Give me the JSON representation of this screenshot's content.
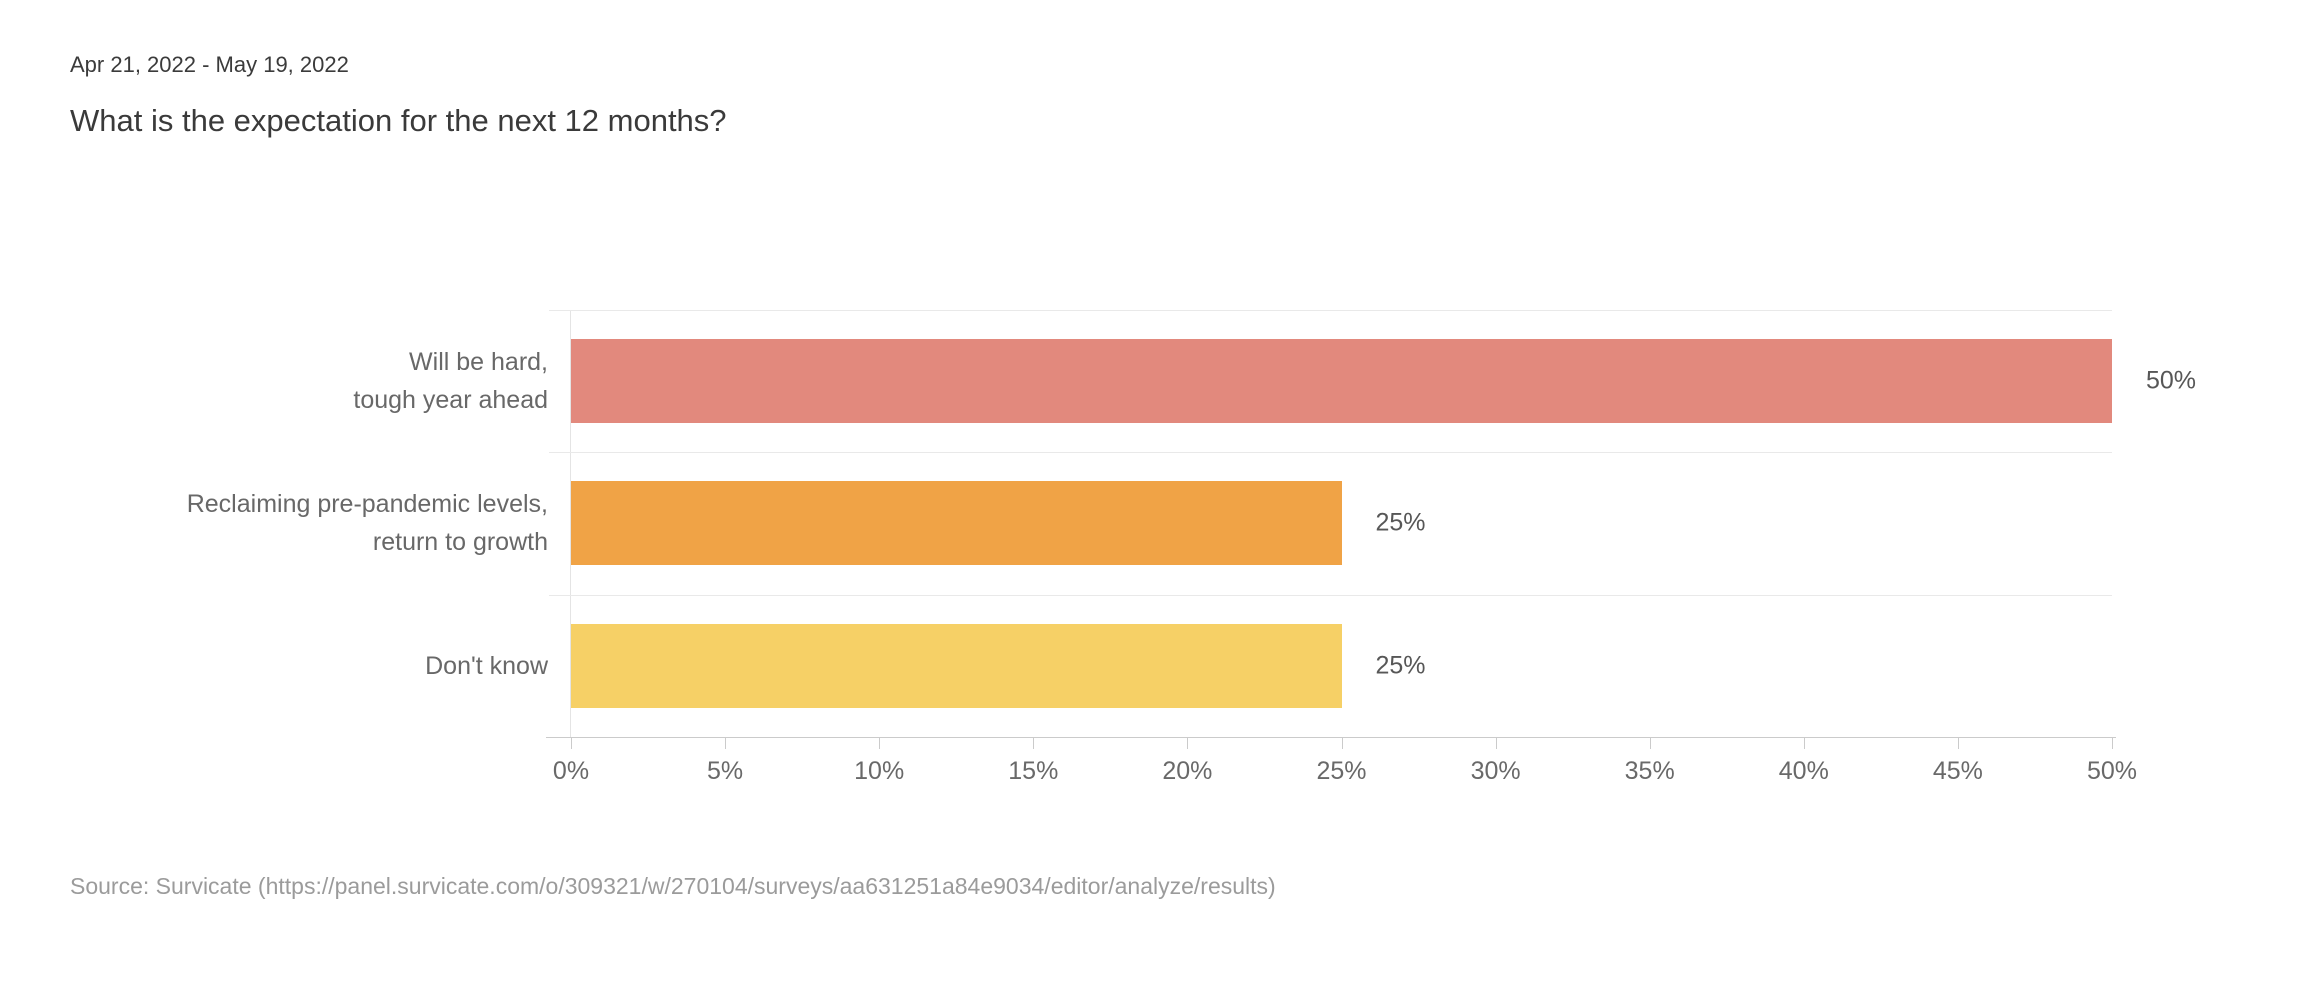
{
  "header": {
    "date_range": "Apr 21, 2022 - May 19, 2022",
    "title": "What is the expectation for the next 12 months?"
  },
  "footer": {
    "source": "Source: Survicate (https://panel.survicate.com/o/309321/w/270104/surveys/aa631251a84e9034/editor/analyze/results)"
  },
  "chart_data": {
    "type": "bar",
    "orientation": "horizontal",
    "title": "What is the expectation for the next 12 months?",
    "categories": [
      "Will be hard,\ntough year ahead",
      "Reclaiming pre-pandemic levels,\nreturn to growth",
      "Don't know"
    ],
    "values": [
      50,
      25,
      25
    ],
    "value_labels": [
      "50%",
      "25%",
      "25%"
    ],
    "bar_colors": [
      "#e2897d",
      "#f0a346",
      "#f6d066"
    ],
    "xlim": [
      0,
      50
    ],
    "x_tick_step": 5,
    "x_tick_labels": [
      "0%",
      "5%",
      "10%",
      "15%",
      "20%",
      "25%",
      "30%",
      "35%",
      "40%",
      "45%",
      "50%"
    ],
    "grid": true,
    "legend_position": "none"
  },
  "colors": {
    "bar_1": "#e2897d",
    "bar_2": "#f0a346",
    "bar_3": "#f6d066",
    "grid_line": "#e9e9e9",
    "axis_line": "#cbcbcb"
  }
}
